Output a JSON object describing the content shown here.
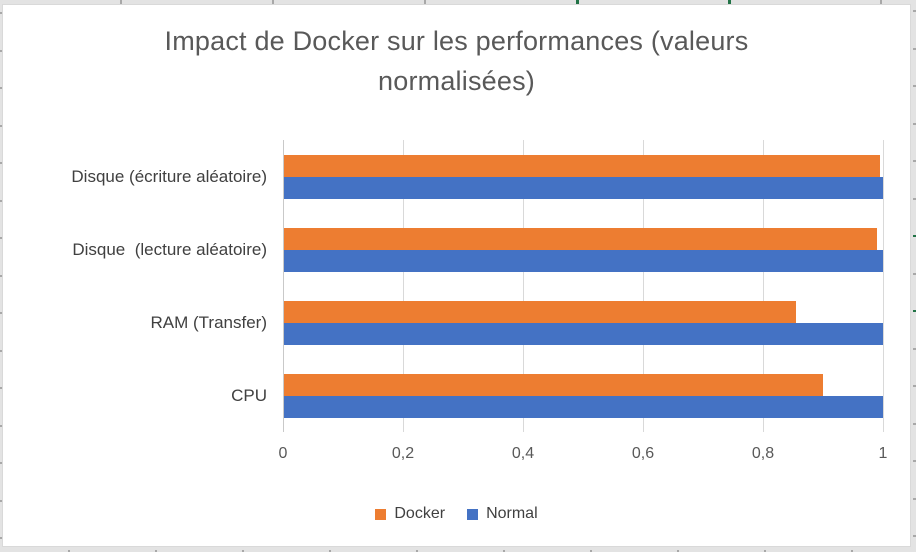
{
  "chart_data": {
    "type": "bar",
    "orientation": "horizontal",
    "title": "Impact de Docker sur les performances (valeurs normalisées)",
    "categories": [
      "Disque (écriture aléatoire)",
      "Disque  (lecture aléatoire)",
      "RAM (Transfer)",
      "CPU"
    ],
    "series": [
      {
        "name": "Docker",
        "color": "#ED7D31",
        "values": [
          0.995,
          0.99,
          0.855,
          0.9
        ]
      },
      {
        "name": "Normal",
        "color": "#4472C4",
        "values": [
          1.0,
          1.0,
          1.0,
          1.0
        ]
      }
    ],
    "xlim": [
      0,
      1
    ],
    "x_ticks": {
      "values": [
        0,
        0.2,
        0.4,
        0.6,
        0.8,
        1
      ],
      "labels": [
        "0",
        "0,2",
        "0,4",
        "0,6",
        "0,8",
        "1"
      ]
    },
    "grid": true,
    "legend_position": "bottom",
    "colors": {
      "title_text": "#595959",
      "axis_text": "#595959",
      "category_text": "#404040",
      "gridline": "#D9D9D9",
      "panel_border": "#D9D9D9",
      "sheet_accent_green": "#217346"
    }
  }
}
